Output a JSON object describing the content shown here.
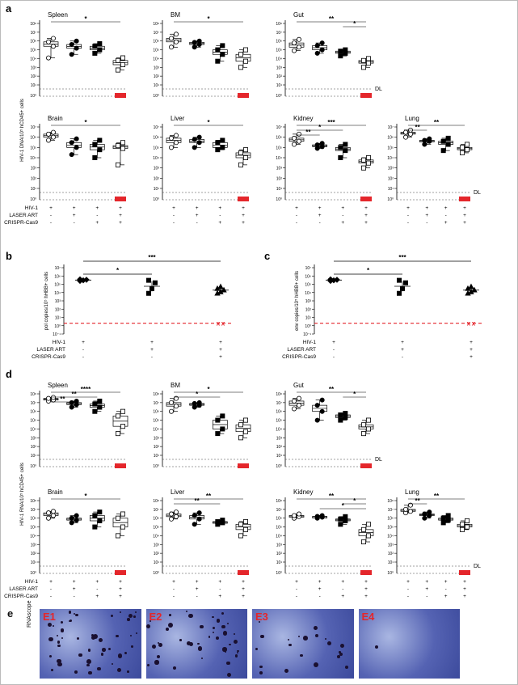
{
  "panel_labels": [
    "a",
    "b",
    "c",
    "d",
    "e"
  ],
  "conditions": {
    "rows": [
      "HIV-1",
      "LASER ART",
      "CRISPR-Cas9"
    ],
    "columns": [
      [
        "+",
        "-",
        "-"
      ],
      [
        "+",
        "+",
        "-"
      ],
      [
        "+",
        "-",
        "+"
      ],
      [
        "+",
        "+",
        "+"
      ]
    ],
    "columns_bc": [
      [
        "+",
        "-",
        "-"
      ],
      [
        "+",
        "+",
        "-"
      ],
      [
        "+",
        "+",
        "+"
      ]
    ]
  },
  "detection_limit_label": "DL",
  "colors": {
    "ref_line": "#e4262b",
    "white_marker": "#ffffff",
    "black_marker": "#000000",
    "stain_bg": "#4b58a8"
  },
  "chart_data": [
    {
      "id": "a",
      "type": "box-dot",
      "ylabel": "HIV-1 DNA/10⁵ hCD45+ cells",
      "yscale": "log",
      "tissues": [
        {
          "title": "Spleen",
          "groups": [
            [
              12000.0,
              250000.0,
              800000.0,
              2000000.0
            ],
            [
              30000.0,
              150000.0,
              400000.0,
              1000000.0
            ],
            [
              40000.0,
              100000.0,
              250000.0,
              500000.0
            ],
            [
              500.0,
              2000.0,
              6000.0,
              12000.0
            ]
          ],
          "zeros": [
            0,
            0,
            0,
            2
          ],
          "sig": [
            {
              "from": 1,
              "to": 4,
              "label": "*"
            }
          ]
        },
        {
          "title": "BM",
          "groups": [
            [
              200000.0,
              800000.0,
              2000000.0,
              6000000.0
            ],
            [
              200000.0,
              400000.0,
              700000.0,
              1000000.0
            ],
            [
              5000.0,
              30000.0,
              100000.0,
              300000.0
            ],
            [
              1000.0,
              5000.0,
              30000.0,
              100000.0
            ]
          ],
          "zeros": [
            0,
            0,
            0,
            2
          ],
          "sig": [
            {
              "from": 1,
              "to": 4,
              "label": "*"
            }
          ]
        },
        {
          "title": "Gut",
          "groups": [
            [
              80000.0,
              200000.0,
              600000.0,
              1500000.0
            ],
            [
              40000.0,
              100000.0,
              300000.0,
              600000.0
            ],
            [
              20000.0,
              40000.0,
              70000.0,
              100000.0
            ],
            [
              1000.0,
              3000.0,
              6000.0,
              10000.0
            ]
          ],
          "zeros": [
            0,
            0,
            0,
            2
          ],
          "sig": [
            {
              "from": 1,
              "to": 4,
              "label": "**"
            },
            {
              "from": 3,
              "to": 4,
              "label": "*"
            }
          ],
          "dl": true
        },
        {
          "title": "Brain",
          "groups": [
            [
              500000.0,
              1000000.0,
              2000000.0,
              3000000.0
            ],
            [
              20000.0,
              100000.0,
              300000.0,
              700000.0
            ],
            [
              10000.0,
              60000.0,
              200000.0,
              500000.0
            ],
            [
              2000.0,
              80000.0,
              150000.0,
              300000.0
            ]
          ],
          "zeros": [
            0,
            0,
            0,
            2
          ],
          "sig": [
            {
              "from": 1,
              "to": 4,
              "label": "*"
            }
          ]
        },
        {
          "title": "Liver",
          "groups": [
            [
              100000.0,
              300000.0,
              800000.0,
              1500000.0
            ],
            [
              100000.0,
              300000.0,
              600000.0,
              1000000.0
            ],
            [
              60000.0,
              100000.0,
              300000.0,
              500000.0
            ],
            [
              2000.0,
              10000.0,
              30000.0,
              60000.0
            ]
          ],
          "zeros": [
            0,
            0,
            0,
            2
          ],
          "sig": [
            {
              "from": 1,
              "to": 4,
              "label": "*"
            }
          ]
        },
        {
          "title": "Kidney",
          "groups": [
            [
              200000.0,
              400000.0,
              800000.0,
              2000000.0
            ],
            [
              80000.0,
              120000.0,
              180000.0,
              250000.0
            ],
            [
              10000.0,
              50000.0,
              100000.0,
              200000.0
            ],
            [
              1000.0,
              3000.0,
              6000.0,
              10000.0
            ]
          ],
          "zeros": [
            0,
            0,
            0,
            2
          ],
          "sig": [
            {
              "from": 1,
              "to": 4,
              "label": "***"
            },
            {
              "from": 1,
              "to": 3,
              "label": "*"
            },
            {
              "from": 1,
              "to": 2,
              "label": "**"
            }
          ]
        },
        {
          "title": "Lung",
          "groups": [
            [
              1000000.0,
              2000000.0,
              3000000.0,
              5000000.0
            ],
            [
              200000.0,
              400000.0,
              500000.0,
              700000.0
            ],
            [
              50000.0,
              200000.0,
              400000.0,
              800000.0
            ],
            [
              30000.0,
              60000.0,
              100000.0,
              200000.0
            ]
          ],
          "zeros": [
            0,
            0,
            0,
            2
          ],
          "sig": [
            {
              "from": 1,
              "to": 4,
              "label": "**"
            },
            {
              "from": 1,
              "to": 2,
              "label": "**"
            }
          ],
          "dl": true
        }
      ]
    },
    {
      "id": "b",
      "type": "scatter-mean-sd",
      "ylabel": "pol copies/10⁵ hHBB+ cells",
      "yscale": "log",
      "groups": [
        [
          250000.0,
          300000.0,
          350000.0,
          400000.0
        ],
        [
          8000.0,
          30000.0,
          150000.0,
          300000.0
        ],
        [
          8000.0,
          12000.0,
          20000.0,
          30000.0,
          50000.0
        ]
      ],
      "sig": [
        {
          "from": 1,
          "to": 3,
          "label": "***"
        },
        {
          "from": 1,
          "to": 2,
          "label": "*"
        }
      ],
      "zero_marks": [
        0,
        0,
        2
      ]
    },
    {
      "id": "c",
      "type": "scatter-mean-sd",
      "ylabel": "env copies/10⁵ hHBB+ cells",
      "yscale": "log",
      "groups": [
        [
          250000.0,
          300000.0,
          350000.0,
          400000.0
        ],
        [
          8000.0,
          30000.0,
          150000.0,
          300000.0
        ],
        [
          8000.0,
          12000.0,
          20000.0,
          30000.0,
          50000.0
        ]
      ],
      "sig": [
        {
          "from": 1,
          "to": 3,
          "label": "***"
        },
        {
          "from": 1,
          "to": 2,
          "label": "*"
        }
      ],
      "zero_marks": [
        0,
        0,
        2
      ]
    },
    {
      "id": "d",
      "type": "box-dot",
      "ylabel": "HIV-1 RNA/10⁵ hCD45+ cells",
      "yscale": "log",
      "tissues": [
        {
          "title": "Spleen",
          "groups": [
            [
              15000000.0,
              20000000.0,
              30000000.0,
              40000000.0
            ],
            [
              3000000.0,
              6000000.0,
              10000000.0,
              15000000.0
            ],
            [
              1000000.0,
              3000000.0,
              7000000.0,
              15000000.0
            ],
            [
              3000.0,
              20000.0,
              300000.0,
              1000000.0
            ]
          ],
          "zeros": [
            0,
            0,
            0,
            2
          ],
          "sig": [
            {
              "from": 1,
              "to": 4,
              "label": "****"
            },
            {
              "from": 1,
              "to": 3,
              "label": "**"
            },
            {
              "from": 1,
              "to": 2,
              "label": "**"
            }
          ]
        },
        {
          "title": "BM",
          "groups": [
            [
              1000000.0,
              4000000.0,
              10000000.0,
              30000000.0
            ],
            [
              3000000.0,
              5000000.0,
              8000000.0,
              10000000.0
            ],
            [
              3000.0,
              10000.0,
              100000.0,
              300000.0
            ],
            [
              1000.0,
              5000.0,
              30000.0,
              100000.0
            ]
          ],
          "zeros": [
            0,
            0,
            0,
            2
          ],
          "sig": [
            {
              "from": 1,
              "to": 4,
              "label": "*"
            },
            {
              "from": 1,
              "to": 3,
              "label": "*"
            }
          ]
        },
        {
          "title": "Gut",
          "groups": [
            [
              2000000.0,
              5000000.0,
              15000000.0,
              30000000.0
            ],
            [
              100000.0,
              1000000.0,
              5000000.0,
              20000000.0
            ],
            [
              100000.0,
              200000.0,
              400000.0,
              600000.0
            ],
            [
              3000.0,
              10000.0,
              30000.0,
              100000.0
            ]
          ],
          "zeros": [
            0,
            0,
            0,
            2
          ],
          "sig": [
            {
              "from": 1,
              "to": 4,
              "label": "**"
            },
            {
              "from": 3,
              "to": 4,
              "label": "*"
            }
          ],
          "dl": true
        },
        {
          "title": "Brain",
          "groups": [
            [
              1000000.0,
              2000000.0,
              4000000.0,
              6000000.0
            ],
            [
              300000.0,
              600000.0,
              1000000.0,
              2000000.0
            ],
            [
              100000.0,
              500000.0,
              2000000.0,
              5000000.0
            ],
            [
              10000.0,
              100000.0,
              1000000.0,
              3000000.0
            ]
          ],
          "zeros": [
            0,
            0,
            0,
            2
          ],
          "sig": [
            {
              "from": 1,
              "to": 4,
              "label": "*"
            }
          ]
        },
        {
          "title": "Liver",
          "groups": [
            [
              800000.0,
              1500000.0,
              3000000.0,
              5000000.0
            ],
            [
              200000.0,
              800000.0,
              2000000.0,
              4000000.0
            ],
            [
              200000.0,
              300000.0,
              400000.0,
              600000.0
            ],
            [
              10000.0,
              50000.0,
              200000.0,
              400000.0
            ]
          ],
          "zeros": [
            0,
            0,
            0,
            2
          ],
          "sig": [
            {
              "from": 1,
              "to": 4,
              "label": "**"
            },
            {
              "from": 1,
              "to": 3,
              "label": "**"
            }
          ]
        },
        {
          "title": "Kidney",
          "groups": [
            [
              1000000.0,
              1500000.0,
              2000000.0,
              3000000.0
            ],
            [
              1000000.0,
              1300000.0,
              1600000.0,
              2000000.0
            ],
            [
              200000.0,
              500000.0,
              800000.0,
              1500000.0
            ],
            [
              2000.0,
              10000.0,
              50000.0,
              200000.0
            ]
          ],
          "zeros": [
            0,
            0,
            0,
            2
          ],
          "sig": [
            {
              "from": 1,
              "to": 4,
              "label": "**"
            },
            {
              "from": 3,
              "to": 4,
              "label": "*"
            },
            {
              "from": 2,
              "to": 4,
              "label": "*"
            }
          ]
        },
        {
          "title": "Lung",
          "groups": [
            [
              4000000.0,
              6000000.0,
              10000000.0,
              30000000.0
            ],
            [
              1000000.0,
              2000000.0,
              3000000.0,
              5000000.0
            ],
            [
              300000.0,
              600000.0,
              1000000.0,
              2000000.0
            ],
            [
              50000.0,
              100000.0,
              200000.0,
              500000.0
            ]
          ],
          "zeros": [
            0,
            0,
            0,
            2
          ],
          "sig": [
            {
              "from": 1,
              "to": 4,
              "label": "**"
            },
            {
              "from": 1,
              "to": 2,
              "label": "**"
            }
          ],
          "dl": true
        }
      ]
    }
  ],
  "panel_e": {
    "side_label": "RNAscope",
    "images": [
      "E1",
      "E2",
      "E3",
      "E4"
    ],
    "stain_density": [
      0.8,
      0.7,
      0.35,
      0.02
    ]
  }
}
